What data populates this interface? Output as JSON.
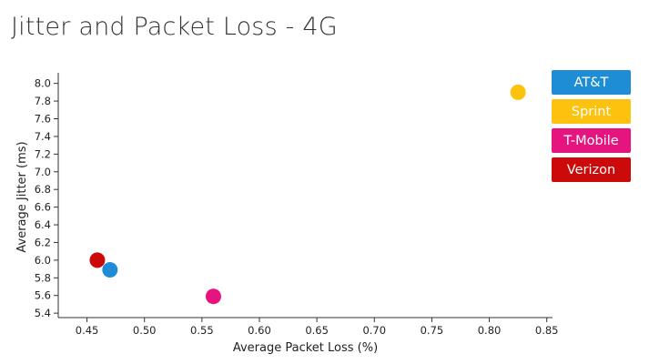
{
  "title": "Jitter and Packet Loss - 4G",
  "chart_data": {
    "type": "scatter",
    "title": "Jitter and Packet Loss - 4G",
    "xlabel": "Average Packet Loss (%)",
    "ylabel": "Average Jitter (ms)",
    "xlim": [
      0.425,
      0.855
    ],
    "ylim": [
      5.35,
      8.12
    ],
    "x_ticks": [
      "0.45",
      "0.50",
      "0.55",
      "0.60",
      "0.65",
      "0.70",
      "0.75",
      "0.80",
      "0.85"
    ],
    "y_ticks": [
      "5.4",
      "5.6",
      "5.8",
      "6.0",
      "6.2",
      "6.4",
      "6.6",
      "6.8",
      "7.0",
      "7.2",
      "7.4",
      "7.6",
      "7.8",
      "8.0"
    ],
    "grid": false,
    "legend_position": "right",
    "series": [
      {
        "name": "AT&T",
        "color": "#1f8dd6",
        "x": 0.47,
        "y": 5.89
      },
      {
        "name": "Sprint",
        "color": "#fcc20e",
        "x": 0.825,
        "y": 7.9
      },
      {
        "name": "T-Mobile",
        "color": "#e6147f",
        "x": 0.56,
        "y": 5.59
      },
      {
        "name": "Verizon",
        "color": "#cc0a0a",
        "x": 0.459,
        "y": 6.0
      }
    ]
  }
}
